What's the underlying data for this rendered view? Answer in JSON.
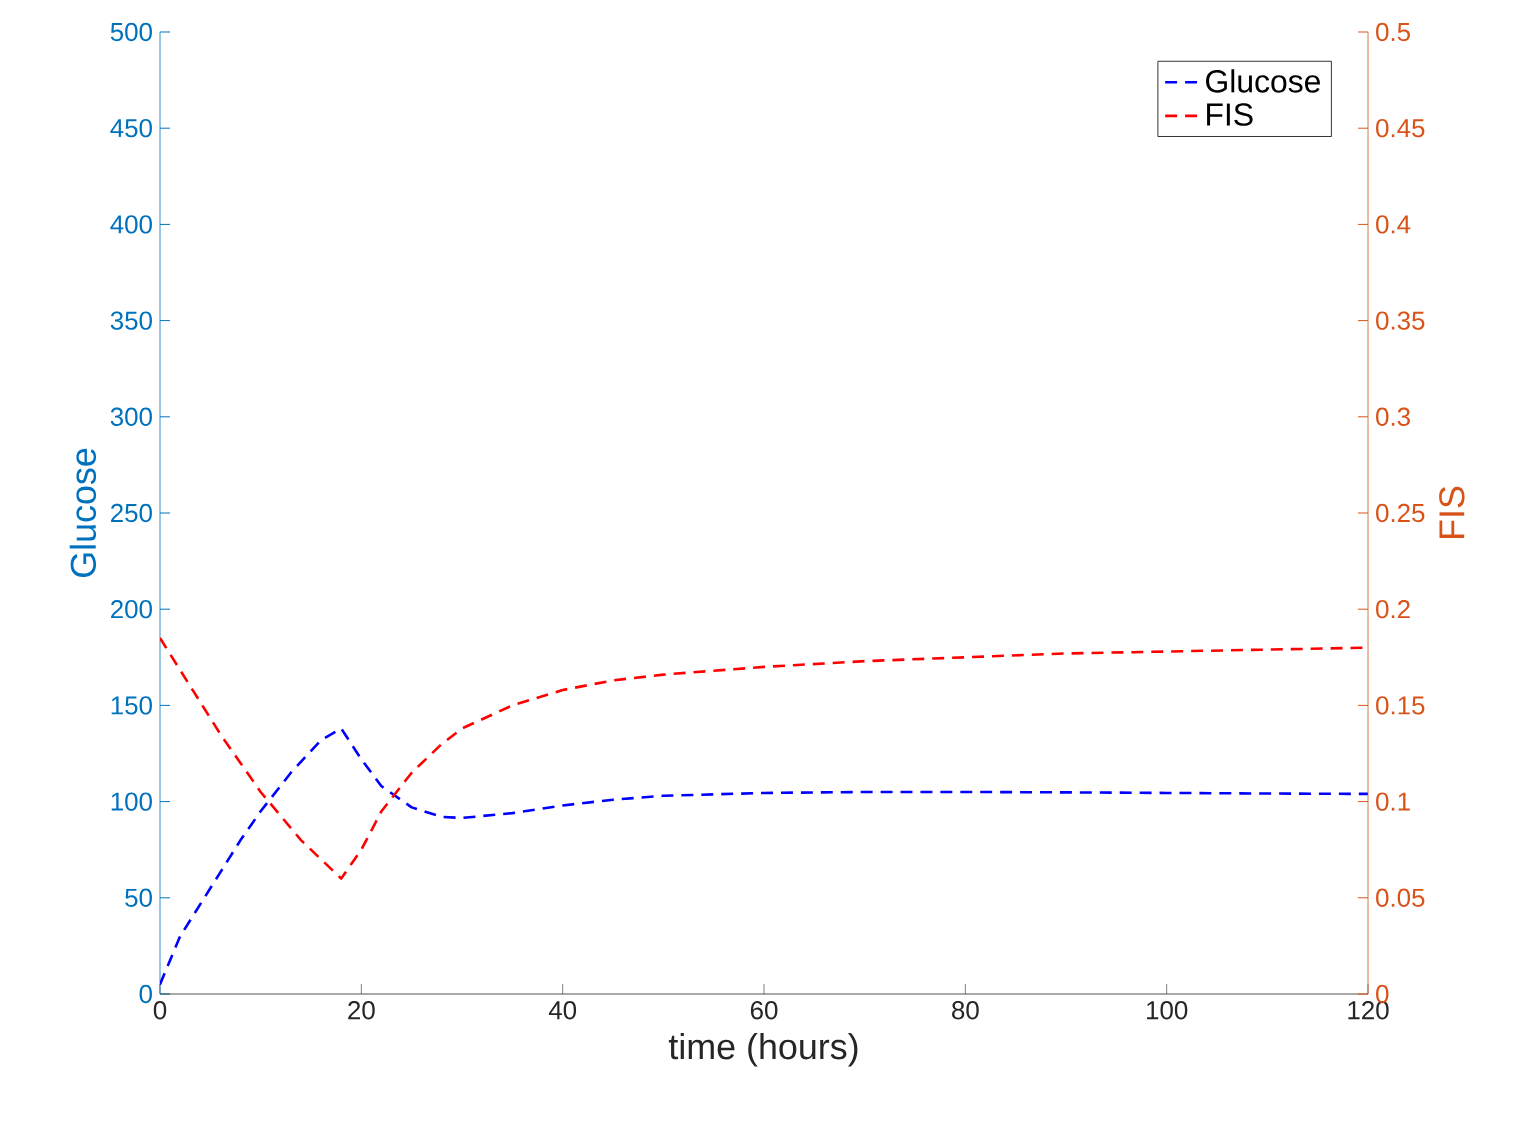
{
  "chart_data": {
    "type": "line",
    "xlabel": "time (hours)",
    "ylabel": "Glucose",
    "y2label": "FIS",
    "xlim": [
      0,
      120
    ],
    "xticks": [
      0,
      20,
      40,
      60,
      80,
      100,
      120
    ],
    "ylim": [
      0,
      500
    ],
    "yticks": [
      0,
      50,
      100,
      150,
      200,
      250,
      300,
      350,
      400,
      450,
      500
    ],
    "y2lim": [
      0,
      0.5
    ],
    "y2ticks": [
      0,
      0.05,
      0.1,
      0.15,
      0.2,
      0.25,
      0.3,
      0.35,
      0.4,
      0.45,
      0.5
    ],
    "legend": "top right",
    "marker": "none",
    "line_style": "dashed",
    "grid": false,
    "series": [
      {
        "name": "Glucose",
        "color": "#0000ff",
        "x": [
          0,
          2,
          5,
          8,
          10,
          13,
          16,
          18,
          20,
          22,
          25,
          28,
          30,
          35,
          40,
          45,
          50,
          60,
          70,
          80,
          90,
          100,
          110,
          120
        ],
        "values": [
          5,
          30,
          55,
          80,
          95,
          115,
          132,
          138,
          122,
          108,
          97,
          92,
          91.5,
          94,
          98,
          101,
          103,
          104.5,
          105,
          105,
          104.8,
          104.5,
          104.2,
          104
        ]
      },
      {
        "name": "FIS",
        "color": "#ff0000",
        "axis": "y2",
        "x": [
          0,
          3,
          6,
          10,
          14,
          18,
          20,
          22,
          25,
          28,
          30,
          35,
          40,
          45,
          50,
          60,
          70,
          80,
          90,
          100,
          110,
          120
        ],
        "values": [
          0.185,
          0.16,
          0.135,
          0.105,
          0.08,
          0.06,
          0.075,
          0.095,
          0.115,
          0.13,
          0.138,
          0.15,
          0.158,
          0.163,
          0.166,
          0.17,
          0.173,
          0.175,
          0.177,
          0.178,
          0.179,
          0.18
        ]
      }
    ]
  }
}
